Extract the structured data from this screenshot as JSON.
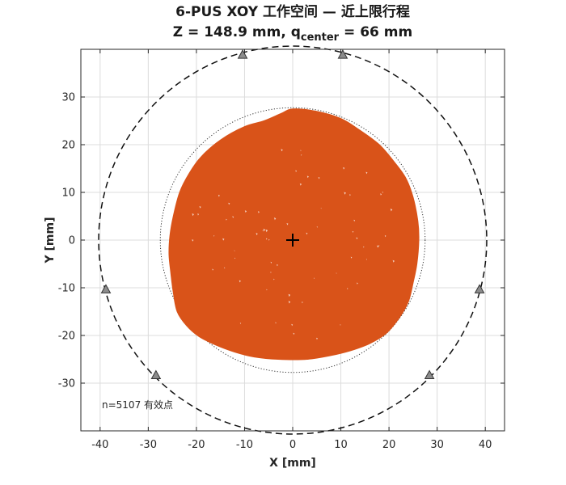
{
  "chart_data": {
    "type": "scatter",
    "title_line1": "6-PUS XOY 工作空间 — 近上限行程",
    "title_line2": {
      "prefix": "Z = 148.9 mm,  q",
      "subscript": "center",
      "suffix": " = 66 mm"
    },
    "xlabel": "X [mm]",
    "ylabel": "Y [mm]",
    "xlim": [
      -44,
      44
    ],
    "ylim": [
      -40,
      40
    ],
    "xticks": [
      -40,
      -30,
      -20,
      -10,
      0,
      10,
      20,
      30,
      40
    ],
    "yticks": [
      -30,
      -20,
      -10,
      0,
      10,
      20,
      30
    ],
    "grid": true,
    "workspace_color": "#d95319",
    "workspace_boundary": [
      [
        0,
        27.5
      ],
      [
        5,
        27
      ],
      [
        10,
        25.5
      ],
      [
        14,
        23
      ],
      [
        18,
        20
      ],
      [
        21,
        16.5
      ],
      [
        23.5,
        13
      ],
      [
        25,
        9
      ],
      [
        26,
        4
      ],
      [
        26.2,
        0
      ],
      [
        25.8,
        -5
      ],
      [
        25,
        -9
      ],
      [
        24,
        -13
      ],
      [
        22,
        -16.5
      ],
      [
        19.5,
        -19.5
      ],
      [
        16,
        -21.7
      ],
      [
        12,
        -23.2
      ],
      [
        8,
        -24.2
      ],
      [
        3,
        -25
      ],
      [
        -3,
        -25
      ],
      [
        -8,
        -24.5
      ],
      [
        -12,
        -23.5
      ],
      [
        -16,
        -22
      ],
      [
        -19.5,
        -20.2
      ],
      [
        -22,
        -18
      ],
      [
        -24,
        -15
      ],
      [
        -24.8,
        -11
      ],
      [
        -25.3,
        -7
      ],
      [
        -25.7,
        -3
      ],
      [
        -25.5,
        1
      ],
      [
        -24.8,
        5
      ],
      [
        -23.5,
        10
      ],
      [
        -21.5,
        14
      ],
      [
        -19,
        17.5
      ],
      [
        -15,
        21
      ],
      [
        -10,
        23.8
      ],
      [
        -6,
        25
      ],
      [
        -2.5,
        26.5
      ]
    ],
    "center_marker": [
      0,
      0
    ],
    "inner_circle_radius": 27.5,
    "outer_circle_radius": 40.3,
    "joint_markers": [
      [
        -10.4,
        38.8
      ],
      [
        10.4,
        38.8
      ],
      [
        38.8,
        -10.4
      ],
      [
        28.4,
        -28.4
      ],
      [
        -28.4,
        -28.4
      ],
      [
        -38.8,
        -10.4
      ]
    ],
    "annotation": "n=5107 有效点"
  }
}
